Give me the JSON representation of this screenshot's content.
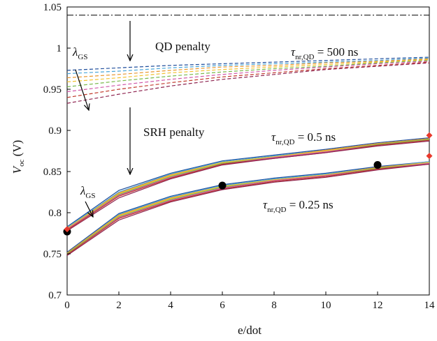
{
  "chart_data": {
    "type": "line",
    "xlabel": "e/dot",
    "ylabel": {
      "main": "V",
      "sub": "oc",
      "unit": " (V)"
    },
    "xlim": [
      0,
      14
    ],
    "ylim": [
      0.7,
      1.05
    ],
    "xticks": [
      "0",
      "2",
      "4",
      "6",
      "8",
      "10",
      "12",
      "14"
    ],
    "yticks": [
      "0.7",
      "0.75",
      "0.8",
      "0.85",
      "0.9",
      "0.95",
      "1",
      "1.05"
    ],
    "grid": false,
    "legend": "none",
    "colors": [
      "#1f4e9c",
      "#4aa6d9",
      "#e8962c",
      "#f2c230",
      "#78b84a",
      "#cf57a8",
      "#c0392b",
      "#8e2450"
    ],
    "reference_line": {
      "y": 1.04,
      "style": "dash-dot",
      "color": "#000000"
    },
    "x": [
      0,
      2,
      4,
      6,
      8,
      10,
      12,
      14
    ],
    "series_groups": [
      {
        "label_prefix": "τ",
        "label_sub": "nr,QD",
        "label_suffix": " = 500 ns",
        "style": "dashed",
        "values": [
          [
            0.973,
            0.976,
            0.979,
            0.981,
            0.983,
            0.985,
            0.987,
            0.989
          ],
          [
            0.969,
            0.972,
            0.976,
            0.979,
            0.981,
            0.983,
            0.985,
            0.988
          ],
          [
            0.964,
            0.968,
            0.973,
            0.977,
            0.979,
            0.982,
            0.984,
            0.987
          ],
          [
            0.959,
            0.964,
            0.97,
            0.974,
            0.977,
            0.98,
            0.983,
            0.986
          ],
          [
            0.953,
            0.96,
            0.966,
            0.971,
            0.975,
            0.978,
            0.982,
            0.985
          ],
          [
            0.947,
            0.955,
            0.962,
            0.968,
            0.973,
            0.977,
            0.981,
            0.984
          ],
          [
            0.94,
            0.95,
            0.958,
            0.965,
            0.97,
            0.975,
            0.979,
            0.983
          ],
          [
            0.933,
            0.944,
            0.954,
            0.962,
            0.968,
            0.974,
            0.978,
            0.982
          ]
        ]
      },
      {
        "label_prefix": "τ",
        "label_sub": "nr,QD",
        "label_suffix": " = 0.5 ns",
        "style": "solid",
        "values": [
          [
            0.783,
            0.827,
            0.848,
            0.863,
            0.87,
            0.877,
            0.885,
            0.891
          ],
          [
            0.782,
            0.825,
            0.847,
            0.862,
            0.869,
            0.876,
            0.884,
            0.89
          ],
          [
            0.781,
            0.824,
            0.846,
            0.861,
            0.868,
            0.876,
            0.884,
            0.89
          ],
          [
            0.781,
            0.823,
            0.845,
            0.861,
            0.868,
            0.875,
            0.883,
            0.889
          ],
          [
            0.78,
            0.822,
            0.844,
            0.86,
            0.867,
            0.874,
            0.883,
            0.889
          ],
          [
            0.78,
            0.821,
            0.843,
            0.859,
            0.867,
            0.874,
            0.882,
            0.888
          ],
          [
            0.779,
            0.82,
            0.842,
            0.859,
            0.866,
            0.873,
            0.882,
            0.888
          ],
          [
            0.778,
            0.818,
            0.841,
            0.858,
            0.866,
            0.873,
            0.881,
            0.887
          ]
        ]
      },
      {
        "label_prefix": "τ",
        "label_sub": "nr,QD",
        "label_suffix": " = 0.25 ns",
        "style": "solid",
        "values": [
          [
            0.752,
            0.799,
            0.82,
            0.834,
            0.842,
            0.848,
            0.856,
            0.862
          ],
          [
            0.751,
            0.798,
            0.819,
            0.833,
            0.841,
            0.847,
            0.855,
            0.862
          ],
          [
            0.751,
            0.797,
            0.818,
            0.832,
            0.84,
            0.846,
            0.855,
            0.861
          ],
          [
            0.75,
            0.796,
            0.817,
            0.832,
            0.84,
            0.846,
            0.854,
            0.861
          ],
          [
            0.75,
            0.795,
            0.816,
            0.831,
            0.839,
            0.845,
            0.854,
            0.86
          ],
          [
            0.749,
            0.794,
            0.815,
            0.83,
            0.839,
            0.845,
            0.853,
            0.86
          ],
          [
            0.749,
            0.793,
            0.814,
            0.829,
            0.838,
            0.844,
            0.853,
            0.859
          ],
          [
            0.748,
            0.791,
            0.813,
            0.828,
            0.837,
            0.843,
            0.852,
            0.859
          ]
        ]
      }
    ],
    "points_circle": [
      {
        "x": 0,
        "y": 0.777
      },
      {
        "x": 6,
        "y": 0.833
      },
      {
        "x": 12,
        "y": 0.858
      }
    ],
    "points_diamond": [
      {
        "x": 0,
        "y": 0.78
      },
      {
        "x": 14,
        "y": 0.894
      },
      {
        "x": 14,
        "y": 0.869
      }
    ],
    "annotations": {
      "qd_penalty": "QD penalty",
      "srh_penalty": "SRH penalty",
      "lambda_main": "λ",
      "lambda_sub": "GS"
    }
  }
}
